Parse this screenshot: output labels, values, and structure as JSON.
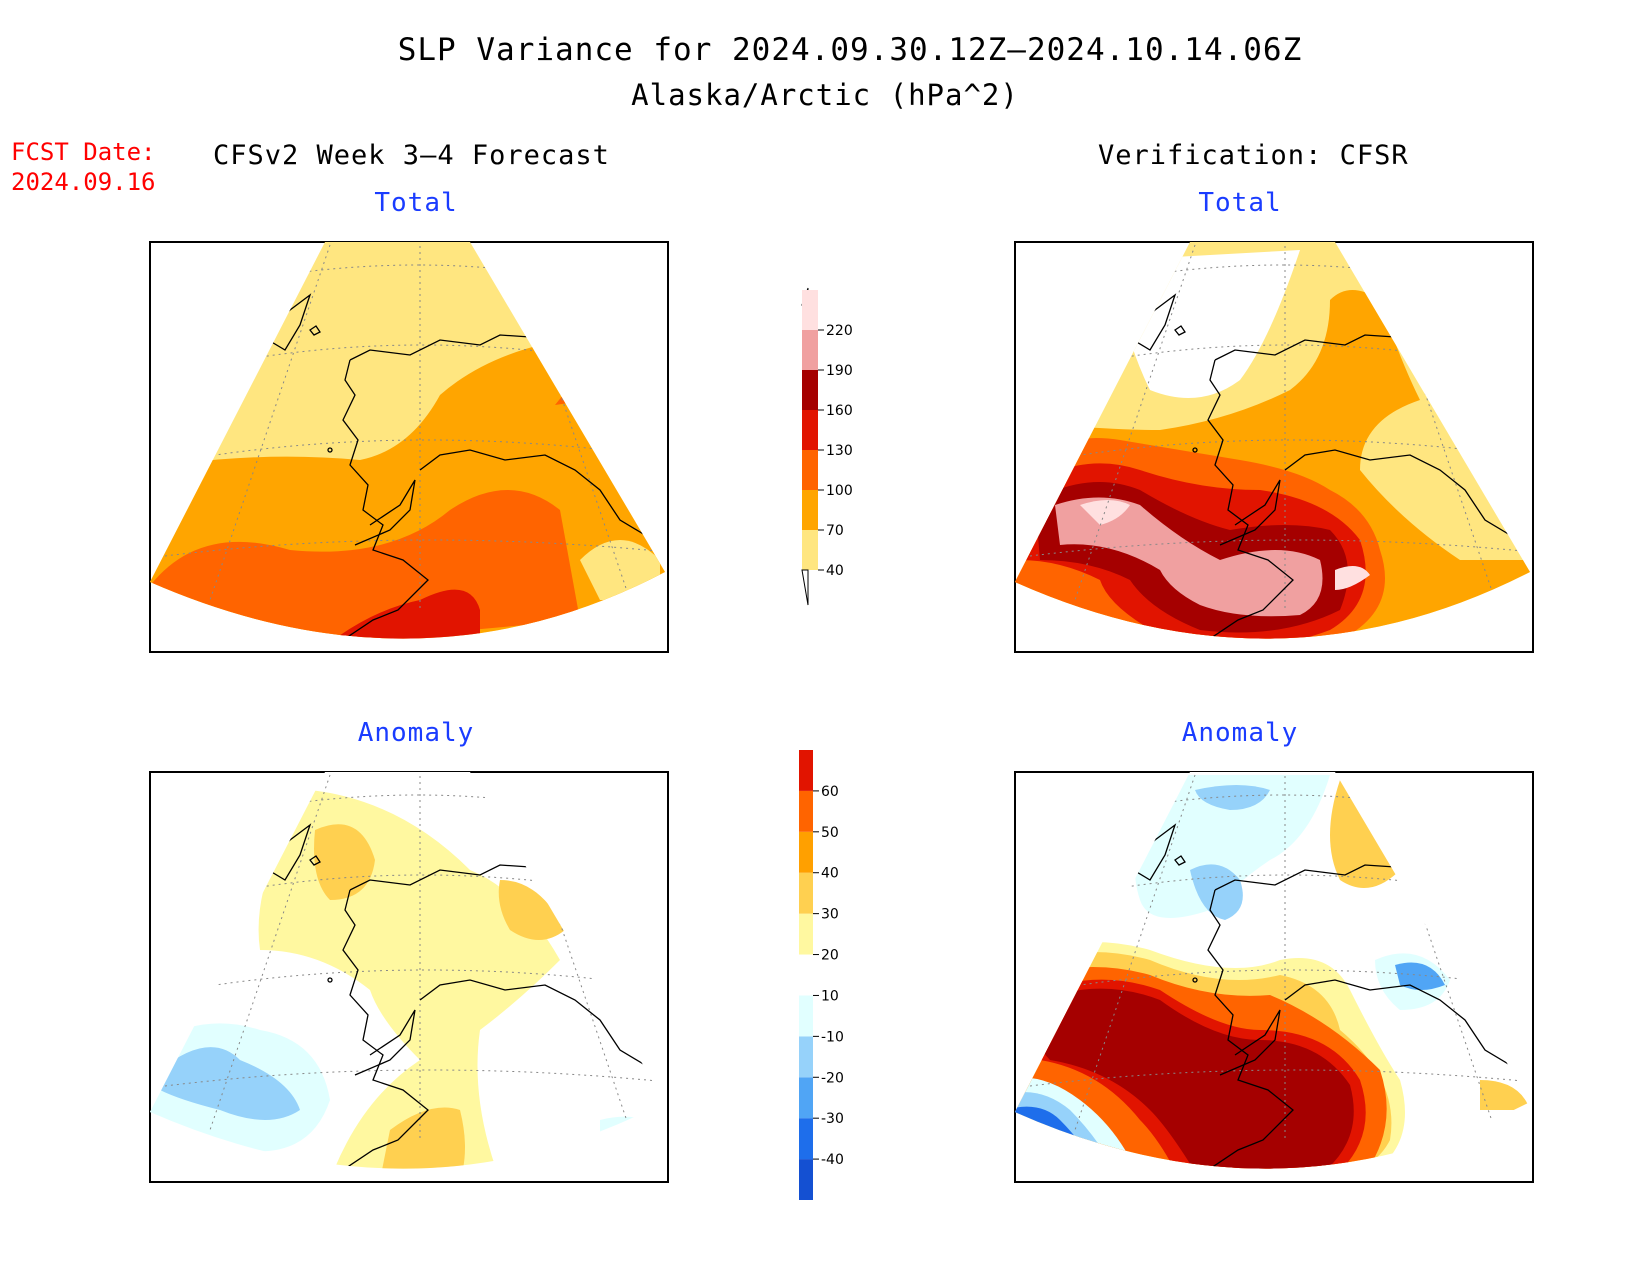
{
  "title": "SLP Variance for 2024.09.30.12Z—2024.10.14.06Z",
  "subtitle": "Alaska/Arctic (hPa^2)",
  "fcst_label": "FCST Date:",
  "fcst_date": "2024.09.16",
  "left_header": "CFSv2 Week 3—4 Forecast",
  "right_header": "Verification: CFSR",
  "panels": {
    "top_left_title": "Total",
    "top_right_title": "Total",
    "bottom_left_title": "Anomaly",
    "bottom_right_title": "Anomaly"
  },
  "colorbar_total": {
    "levels": [
      "40",
      "70",
      "100",
      "130",
      "160",
      "190",
      "220"
    ],
    "colors": [
      "#ffffff",
      "#ffe680",
      "#ffa500",
      "#ff6400",
      "#e11400",
      "#a50000",
      "#f0a0a0",
      "#ffe0e0"
    ]
  },
  "colorbar_anomaly": {
    "levels": [
      "-40",
      "-30",
      "-20",
      "-10",
      "10",
      "20",
      "30",
      "40",
      "50",
      "60"
    ],
    "colors": [
      "#1450d2",
      "#1e6eeb",
      "#50a5f5",
      "#96d2fa",
      "#e1ffff",
      "#ffffff",
      "#fff8a0",
      "#ffd050",
      "#ffa000",
      "#ff6400",
      "#e11400",
      "#a50000"
    ]
  }
}
